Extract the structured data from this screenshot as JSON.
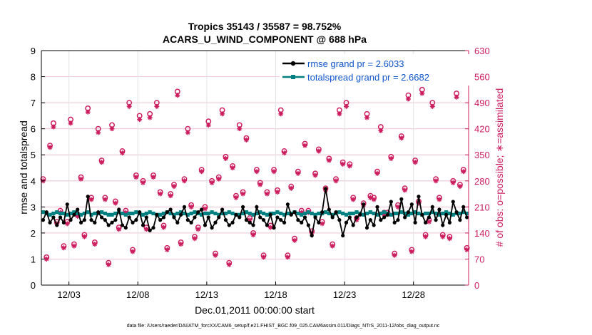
{
  "colors": {
    "rmse": "#000000",
    "spread": "#008080",
    "obs": "#cc1d5e",
    "legend_text": "#1155cc"
  },
  "chart_data": {
    "type": "line",
    "title_line1": "Tropics 35143 / 35587 = 98.752%",
    "title_line2": "ACARS_U_WIND_COMPONENT @ 688 hPa",
    "xlabel": "Dec.01,2011 00:00:00 start",
    "ylabel_left": "rmse and totalspread",
    "ylabel_right": "# of obs: o=possible; ∗=assimilated",
    "footnote": "data file: /Users/raeder/DAI/ATM_forcXX/CAM6_setup/f.e21.FHIST_BGC.f09_025.CAM6assim.011/Diags_NTrS_2011-12/obs_diag_output.nc",
    "x_unit": "day of Dec 2011 (fractional)",
    "xlim": [
      1.0,
      32.0
    ],
    "ylim_left": [
      0,
      9
    ],
    "ylim_right": [
      0,
      630
    ],
    "x_ticks": [
      3,
      8,
      13,
      18,
      23,
      28
    ],
    "x_tick_labels": [
      "12/03",
      "12/08",
      "12/13",
      "12/18",
      "12/23",
      "12/28"
    ],
    "y_left_ticks": [
      0,
      1,
      2,
      3,
      4,
      5,
      6,
      7,
      8,
      9
    ],
    "y_right_ticks": [
      0,
      70,
      140,
      210,
      280,
      350,
      420,
      490,
      560,
      630
    ],
    "grid": true,
    "legend_placement": "top-right",
    "legend": [
      "rmse grand pr = 2.6033",
      "totalspread grand pr = 2.6682"
    ],
    "obs_x": [
      1.125,
      1.375,
      1.625,
      1.875,
      2.125,
      2.375,
      2.625,
      2.875,
      3.125,
      3.375,
      3.625,
      3.875,
      4.125,
      4.375,
      4.625,
      4.875,
      5.125,
      5.375,
      5.625,
      5.875,
      6.125,
      6.375,
      6.625,
      6.875,
      7.125,
      7.375,
      7.625,
      7.875,
      8.125,
      8.375,
      8.625,
      8.875,
      9.125,
      9.375,
      9.625,
      9.875,
      10.125,
      10.375,
      10.625,
      10.875,
      11.125,
      11.375,
      11.625,
      11.875,
      12.125,
      12.375,
      12.625,
      12.875,
      13.125,
      13.375,
      13.625,
      13.875,
      14.125,
      14.375,
      14.625,
      14.875,
      15.125,
      15.375,
      15.625,
      15.875,
      16.125,
      16.375,
      16.625,
      16.875,
      17.125,
      17.375,
      17.625,
      17.875,
      18.125,
      18.375,
      18.625,
      18.875,
      19.125,
      19.375,
      19.625,
      19.875,
      20.125,
      20.375,
      20.625,
      20.875,
      21.125,
      21.375,
      21.625,
      21.875,
      22.125,
      22.375,
      22.625,
      22.875,
      23.125,
      23.375,
      23.625,
      23.875,
      24.125,
      24.375,
      24.625,
      24.875,
      25.125,
      25.375,
      25.625,
      25.875,
      26.125,
      26.375,
      26.625,
      26.875,
      27.125,
      27.375,
      27.625,
      27.875,
      28.125,
      28.375,
      28.625,
      28.875,
      29.125,
      29.375,
      29.625,
      29.875,
      30.125,
      30.375,
      30.625,
      30.875,
      31.125,
      31.375,
      31.625,
      31.875
    ],
    "possible_counts": [
      285,
      75,
      375,
      435,
      170,
      200,
      105,
      170,
      445,
      110,
      190,
      290,
      135,
      475,
      235,
      115,
      420,
      335,
      235,
      60,
      430,
      225,
      155,
      360,
      200,
      490,
      95,
      295,
      455,
      280,
      155,
      460,
      295,
      490,
      250,
      160,
      100,
      245,
      270,
      520,
      115,
      285,
      420,
      215,
      130,
      155,
      310,
      210,
      440,
      280,
      85,
      290,
      470,
      345,
      60,
      320,
      240,
      430,
      250,
      395,
      180,
      140,
      310,
      275,
      80,
      250,
      160,
      310,
      255,
      470,
      360,
      80,
      265,
      125,
      305,
      200,
      380,
      200,
      145,
      300,
      365,
      170,
      260,
      340,
      110,
      285,
      470,
      330,
      490,
      325,
      235,
      180,
      555,
      220,
      460,
      240,
      235,
      305,
      425,
      195,
      195,
      345,
      85,
      215,
      400,
      260,
      510,
      95,
      335,
      225,
      525,
      135,
      175,
      490,
      285,
      235,
      135,
      575,
      130,
      280,
      515,
      270,
      310,
      100
    ],
    "assimilated_counts": [
      280,
      70,
      370,
      425,
      165,
      195,
      100,
      165,
      435,
      105,
      185,
      285,
      130,
      465,
      230,
      110,
      410,
      330,
      230,
      55,
      420,
      220,
      150,
      355,
      195,
      480,
      90,
      290,
      445,
      275,
      150,
      450,
      290,
      480,
      245,
      155,
      95,
      240,
      265,
      510,
      110,
      280,
      410,
      210,
      125,
      150,
      305,
      205,
      430,
      275,
      80,
      285,
      460,
      340,
      55,
      315,
      235,
      420,
      245,
      390,
      175,
      135,
      305,
      270,
      75,
      245,
      155,
      305,
      250,
      460,
      355,
      75,
      260,
      120,
      300,
      195,
      375,
      195,
      140,
      295,
      360,
      165,
      255,
      335,
      105,
      280,
      460,
      325,
      480,
      320,
      230,
      175,
      545,
      215,
      450,
      235,
      230,
      300,
      415,
      190,
      190,
      340,
      80,
      210,
      395,
      255,
      500,
      90,
      330,
      220,
      515,
      130,
      170,
      480,
      280,
      230,
      130,
      565,
      125,
      275,
      505,
      265,
      305,
      95
    ],
    "rmse": [
      2.5,
      2.8,
      2.4,
      2.6,
      2.3,
      2.6,
      2.4,
      3.1,
      2.5,
      2.7,
      2.9,
      2.4,
      2.5,
      3.4,
      2.5,
      2.4,
      2.8,
      2.6,
      2.5,
      2.3,
      2.4,
      2.5,
      2.9,
      2.3,
      2.2,
      2.6,
      2.4,
      2.5,
      2.8,
      2.3,
      2.6,
      2.1,
      2.2,
      2.7,
      2.5,
      2.6,
      2.8,
      2.9,
      2.6,
      2.4,
      2.7,
      3.0,
      2.5,
      2.4,
      2.6,
      2.8,
      2.9,
      2.3,
      2.6,
      2.2,
      2.4,
      2.6,
      2.9,
      2.5,
      2.3,
      2.4,
      2.7,
      2.6,
      3.0,
      2.5,
      2.4,
      2.3,
      3.0,
      2.6,
      2.5,
      2.3,
      2.7,
      2.2,
      2.6,
      2.5,
      2.4,
      3.1,
      2.7,
      2.8,
      2.5,
      2.4,
      2.6,
      2.3,
      1.9,
      2.6,
      2.4,
      2.8,
      3.7,
      2.9,
      2.6,
      2.8,
      2.5,
      1.9,
      2.4,
      2.6,
      2.3,
      2.6,
      2.7,
      3.1,
      2.2,
      2.5,
      2.3,
      3.0,
      2.5,
      2.6,
      2.7,
      3.2,
      2.4,
      2.5,
      3.3,
      2.6,
      2.8,
      3.1,
      2.4,
      3.4,
      2.7,
      2.4,
      2.6,
      3.0,
      2.5,
      2.9,
      2.3,
      2.7,
      2.4,
      3.2,
      2.8,
      2.5,
      3.0,
      2.6
    ],
    "spread": [
      2.8,
      2.75,
      2.7,
      2.75,
      2.8,
      2.75,
      2.75,
      2.7,
      2.75,
      2.8,
      2.75,
      2.7,
      2.75,
      2.8,
      2.7,
      2.75,
      2.75,
      2.8,
      2.75,
      2.7,
      2.7,
      2.75,
      2.8,
      2.75,
      2.7,
      2.75,
      2.75,
      2.8,
      2.75,
      2.7,
      2.75,
      2.8,
      2.75,
      2.7,
      2.7,
      2.75,
      2.8,
      2.75,
      2.7,
      2.75,
      2.8,
      2.75,
      2.7,
      2.75,
      2.8,
      2.75,
      2.7,
      2.75,
      2.75,
      2.8,
      2.75,
      2.7,
      2.75,
      2.75,
      2.8,
      2.75,
      2.7,
      2.7,
      2.75,
      2.8,
      2.75,
      2.7,
      2.75,
      2.8,
      2.75,
      2.7,
      2.75,
      2.75,
      2.8,
      2.75,
      2.7,
      2.75,
      2.75,
      2.8,
      2.75,
      2.7,
      2.75,
      2.8,
      2.75,
      2.7,
      2.75,
      2.75,
      2.8,
      2.75,
      2.7,
      2.75,
      2.8,
      2.75,
      2.7,
      2.75,
      2.75,
      2.8,
      2.75,
      2.7,
      2.75,
      2.8,
      2.75,
      2.7,
      2.75,
      2.8,
      2.75,
      2.7,
      2.75,
      2.75,
      2.8,
      2.75,
      2.7,
      2.75,
      2.8,
      2.75,
      2.7,
      2.75,
      2.75,
      2.8,
      2.75,
      2.7,
      2.75,
      2.8,
      2.75,
      2.7,
      2.75,
      2.75,
      2.8,
      2.75
    ]
  }
}
